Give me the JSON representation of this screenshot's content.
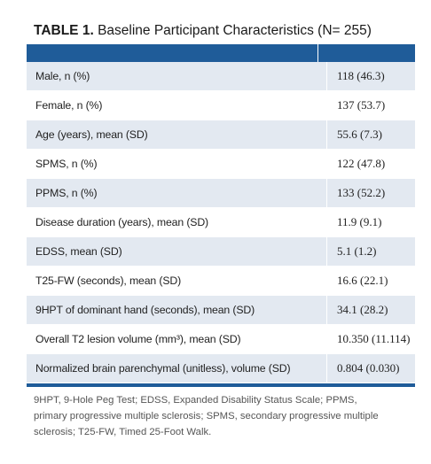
{
  "title": {
    "label": "TABLE 1.",
    "text": "Baseline Participant Characteristics (N= 255)"
  },
  "table": {
    "rows": [
      [
        "Male, n (%)",
        "118 (46.3)"
      ],
      [
        "Female, n (%)",
        "137 (53.7)"
      ],
      [
        "Age (years), mean (SD)",
        "55.6 (7.3)"
      ],
      [
        "SPMS, n (%)",
        "122 (47.8)"
      ],
      [
        "PPMS, n (%)",
        "133 (52.2)"
      ],
      [
        "Disease duration (years), mean (SD)",
        "11.9 (9.1)"
      ],
      [
        "EDSS, mean (SD)",
        "5.1 (1.2)"
      ],
      [
        "T25-FW (seconds), mean (SD)",
        "16.6 (22.1)"
      ],
      [
        "9HPT of dominant hand (seconds), mean (SD)",
        "34.1 (28.2)"
      ],
      [
        "Overall T2 lesion volume (mm³), mean (SD)",
        "10.350 (11.114)"
      ],
      [
        "Normalized brain parenchymal (unitless), volume (SD)",
        "0.804 (0.030)"
      ]
    ]
  },
  "footnote": "9HPT, 9-Hole Peg Test; EDSS, Expanded Disability Status Scale; PPMS, primary progressive multiple sclerosis; SPMS, secondary progressive multiple sclerosis; T25-FW, Timed 25-Foot Walk."
}
